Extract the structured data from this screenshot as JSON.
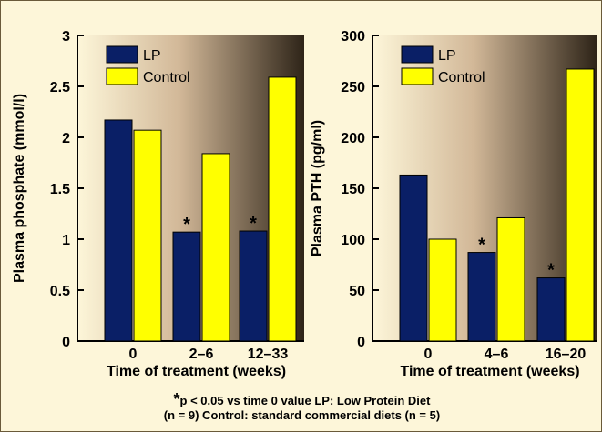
{
  "chart_data": [
    {
      "type": "bar",
      "categories": [
        "0",
        "2–6",
        "12–33"
      ],
      "series": [
        {
          "name": "LP",
          "values": [
            2.17,
            1.07,
            1.08
          ],
          "color": "#0a1f66"
        },
        {
          "name": "Control",
          "values": [
            2.07,
            1.84,
            2.59
          ],
          "color": "#ffff00"
        }
      ],
      "significance": [
        "",
        "*",
        "*"
      ],
      "xlabel": "Time of treatment (weeks)",
      "ylabel": "Plasma phosphate (mmol/l)",
      "ylim": [
        0,
        3
      ],
      "yticks": [
        0,
        0.5,
        1,
        1.5,
        2,
        2.5,
        3
      ],
      "ytick_labels": [
        "0",
        "0.5",
        "1",
        "1.5",
        "2",
        "2.5",
        "3"
      ],
      "legend": "top-left",
      "grid": false
    },
    {
      "type": "bar",
      "categories": [
        "0",
        "4–6",
        "16–20"
      ],
      "series": [
        {
          "name": "LP",
          "values": [
            163,
            87,
            62
          ],
          "color": "#0a1f66"
        },
        {
          "name": "Control",
          "values": [
            100,
            121,
            267
          ],
          "color": "#ffff00"
        }
      ],
      "significance": [
        "",
        "*",
        "*"
      ],
      "xlabel": "Time of treatment (weeks)",
      "ylabel": "Plasma PTH (pg/ml)",
      "ylim": [
        0,
        300
      ],
      "yticks": [
        0,
        50,
        100,
        150,
        200,
        250,
        300
      ],
      "ytick_labels": [
        "0",
        "50",
        "100",
        "150",
        "200",
        "250",
        "300"
      ],
      "legend": "top-left",
      "grid": false
    }
  ],
  "footnote": {
    "star": "*",
    "line1_rest": "p < 0.05 vs time 0 value    LP: Low Protein Diet",
    "line2": "(n = 9)    Control: standard commercial diets (n = 5)"
  }
}
